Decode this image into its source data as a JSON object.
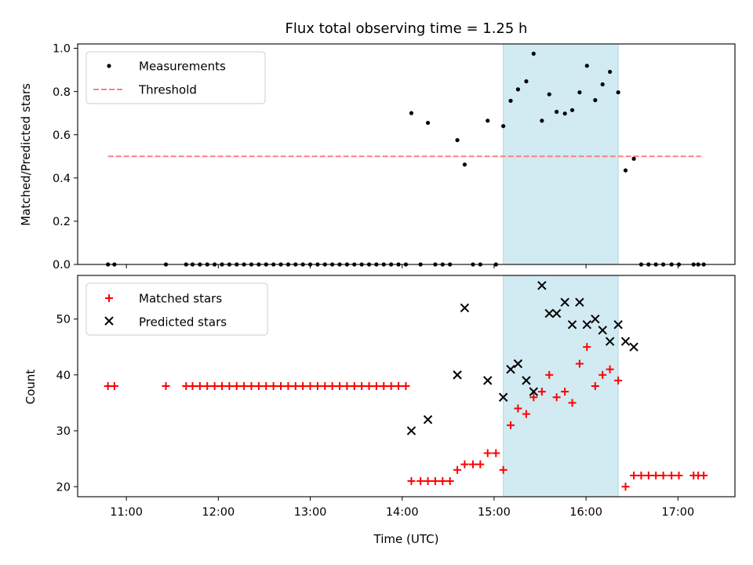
{
  "chart_data": [
    {
      "type": "scatter",
      "title": "Flux total observing time = 1.25 h",
      "xlabel": "",
      "ylabel": "Matched/Predicted stars",
      "ylim": [
        0.0,
        1.02
      ],
      "xlim_hours": [
        10.47,
        17.62
      ],
      "yticks": [
        0.0,
        0.2,
        0.4,
        0.6,
        0.8,
        1.0
      ],
      "ytick_labels": [
        "0.0",
        "0.2",
        "0.4",
        "0.6",
        "0.8",
        "1.0"
      ],
      "shaded_span_hours": [
        15.1,
        16.35
      ],
      "shade_color": "#add8e6",
      "legend": {
        "placement": "upper-left",
        "entries": [
          "Measurements",
          "Threshold"
        ]
      },
      "threshold": {
        "name": "Threshold",
        "value": 0.5,
        "x_range_hours": [
          10.8,
          17.25
        ],
        "color": "#ff7f7f",
        "style": "dashed"
      },
      "series": [
        {
          "name": "Measurements",
          "marker": "dot",
          "color": "#000000",
          "points": [
            [
              10.8,
              0
            ],
            [
              10.87,
              0
            ],
            [
              11.43,
              0
            ],
            [
              11.65,
              0
            ],
            [
              11.72,
              0
            ],
            [
              11.8,
              0
            ],
            [
              11.88,
              0
            ],
            [
              11.96,
              0
            ],
            [
              12.04,
              0
            ],
            [
              12.12,
              0
            ],
            [
              12.2,
              0
            ],
            [
              12.28,
              0
            ],
            [
              12.36,
              0
            ],
            [
              12.44,
              0
            ],
            [
              12.52,
              0
            ],
            [
              12.6,
              0
            ],
            [
              12.68,
              0
            ],
            [
              12.76,
              0
            ],
            [
              12.84,
              0
            ],
            [
              12.92,
              0
            ],
            [
              13.0,
              0
            ],
            [
              13.08,
              0
            ],
            [
              13.16,
              0
            ],
            [
              13.24,
              0
            ],
            [
              13.32,
              0
            ],
            [
              13.4,
              0
            ],
            [
              13.48,
              0
            ],
            [
              13.56,
              0
            ],
            [
              13.64,
              0
            ],
            [
              13.72,
              0
            ],
            [
              13.8,
              0
            ],
            [
              13.88,
              0
            ],
            [
              13.96,
              0
            ],
            [
              14.04,
              0
            ],
            [
              14.1,
              0.7
            ],
            [
              14.2,
              0
            ],
            [
              14.28,
              0.655
            ],
            [
              14.36,
              0
            ],
            [
              14.44,
              0
            ],
            [
              14.52,
              0
            ],
            [
              14.6,
              0.575
            ],
            [
              14.68,
              0.462
            ],
            [
              14.77,
              0
            ],
            [
              14.85,
              0
            ],
            [
              14.93,
              0.665
            ],
            [
              15.02,
              0
            ],
            [
              15.1,
              0.64
            ],
            [
              15.18,
              0.757
            ],
            [
              15.26,
              0.81
            ],
            [
              15.35,
              0.847
            ],
            [
              15.43,
              0.975
            ],
            [
              15.52,
              0.665
            ],
            [
              15.6,
              0.787
            ],
            [
              15.68,
              0.706
            ],
            [
              15.77,
              0.698
            ],
            [
              15.85,
              0.714
            ],
            [
              15.93,
              0.796
            ],
            [
              16.01,
              0.919
            ],
            [
              16.1,
              0.76
            ],
            [
              16.18,
              0.833
            ],
            [
              16.26,
              0.891
            ],
            [
              16.35,
              0.796
            ],
            [
              16.43,
              0.435
            ],
            [
              16.52,
              0.489
            ],
            [
              16.6,
              0
            ],
            [
              16.68,
              0
            ],
            [
              16.76,
              0
            ],
            [
              16.84,
              0
            ],
            [
              16.93,
              0
            ],
            [
              17.01,
              0
            ],
            [
              17.17,
              0
            ],
            [
              17.22,
              0
            ],
            [
              17.28,
              0
            ]
          ]
        }
      ]
    },
    {
      "type": "scatter",
      "title": "",
      "xlabel": "Time (UTC)",
      "ylabel": "Count",
      "ylim": [
        18.2,
        57.8
      ],
      "xlim_hours": [
        10.47,
        17.62
      ],
      "yticks": [
        20,
        30,
        40,
        50
      ],
      "ytick_labels": [
        "20",
        "30",
        "40",
        "50"
      ],
      "xticks_hours": [
        11,
        12,
        13,
        14,
        15,
        16,
        17
      ],
      "xtick_labels": [
        "11:00",
        "12:00",
        "13:00",
        "14:00",
        "15:00",
        "16:00",
        "17:00"
      ],
      "shaded_span_hours": [
        15.1,
        16.35
      ],
      "shade_color": "#add8e6",
      "legend": {
        "placement": "upper-left",
        "entries": [
          "Matched stars",
          "Predicted stars"
        ]
      },
      "series": [
        {
          "name": "Matched stars",
          "marker": "plus",
          "color": "#ff0000",
          "points": [
            [
              10.8,
              38
            ],
            [
              10.87,
              38
            ],
            [
              11.43,
              38
            ],
            [
              11.65,
              38
            ],
            [
              11.72,
              38
            ],
            [
              11.8,
              38
            ],
            [
              11.88,
              38
            ],
            [
              11.96,
              38
            ],
            [
              12.04,
              38
            ],
            [
              12.12,
              38
            ],
            [
              12.2,
              38
            ],
            [
              12.28,
              38
            ],
            [
              12.36,
              38
            ],
            [
              12.44,
              38
            ],
            [
              12.52,
              38
            ],
            [
              12.6,
              38
            ],
            [
              12.68,
              38
            ],
            [
              12.76,
              38
            ],
            [
              12.84,
              38
            ],
            [
              12.92,
              38
            ],
            [
              13.0,
              38
            ],
            [
              13.08,
              38
            ],
            [
              13.16,
              38
            ],
            [
              13.24,
              38
            ],
            [
              13.32,
              38
            ],
            [
              13.4,
              38
            ],
            [
              13.48,
              38
            ],
            [
              13.56,
              38
            ],
            [
              13.64,
              38
            ],
            [
              13.72,
              38
            ],
            [
              13.8,
              38
            ],
            [
              13.88,
              38
            ],
            [
              13.96,
              38
            ],
            [
              14.04,
              38
            ],
            [
              14.1,
              21
            ],
            [
              14.2,
              21
            ],
            [
              14.28,
              21
            ],
            [
              14.36,
              21
            ],
            [
              14.44,
              21
            ],
            [
              14.52,
              21
            ],
            [
              14.6,
              23
            ],
            [
              14.68,
              24
            ],
            [
              14.77,
              24
            ],
            [
              14.85,
              24
            ],
            [
              14.93,
              26
            ],
            [
              15.02,
              26
            ],
            [
              15.1,
              23
            ],
            [
              15.18,
              31
            ],
            [
              15.26,
              34
            ],
            [
              15.35,
              33
            ],
            [
              15.43,
              36
            ],
            [
              15.52,
              37
            ],
            [
              15.6,
              40
            ],
            [
              15.68,
              36
            ],
            [
              15.77,
              37
            ],
            [
              15.85,
              35
            ],
            [
              15.93,
              42
            ],
            [
              16.01,
              45
            ],
            [
              16.1,
              38
            ],
            [
              16.18,
              40
            ],
            [
              16.26,
              41
            ],
            [
              16.35,
              39
            ],
            [
              16.43,
              20
            ],
            [
              16.52,
              22
            ],
            [
              16.6,
              22
            ],
            [
              16.68,
              22
            ],
            [
              16.76,
              22
            ],
            [
              16.84,
              22
            ],
            [
              16.93,
              22
            ],
            [
              17.01,
              22
            ],
            [
              17.17,
              22
            ],
            [
              17.22,
              22
            ],
            [
              17.28,
              22
            ]
          ]
        },
        {
          "name": "Predicted stars",
          "marker": "x",
          "color": "#000000",
          "points": [
            [
              14.1,
              30
            ],
            [
              14.28,
              32
            ],
            [
              14.6,
              40
            ],
            [
              14.68,
              52
            ],
            [
              14.93,
              39
            ],
            [
              15.1,
              36
            ],
            [
              15.18,
              41
            ],
            [
              15.26,
              42
            ],
            [
              15.35,
              39
            ],
            [
              15.43,
              37
            ],
            [
              15.52,
              56
            ],
            [
              15.6,
              51
            ],
            [
              15.68,
              51
            ],
            [
              15.77,
              53
            ],
            [
              15.85,
              49
            ],
            [
              15.93,
              53
            ],
            [
              16.01,
              49
            ],
            [
              16.1,
              50
            ],
            [
              16.18,
              48
            ],
            [
              16.26,
              46
            ],
            [
              16.35,
              49
            ],
            [
              16.43,
              46
            ],
            [
              16.52,
              45
            ]
          ]
        }
      ]
    }
  ]
}
